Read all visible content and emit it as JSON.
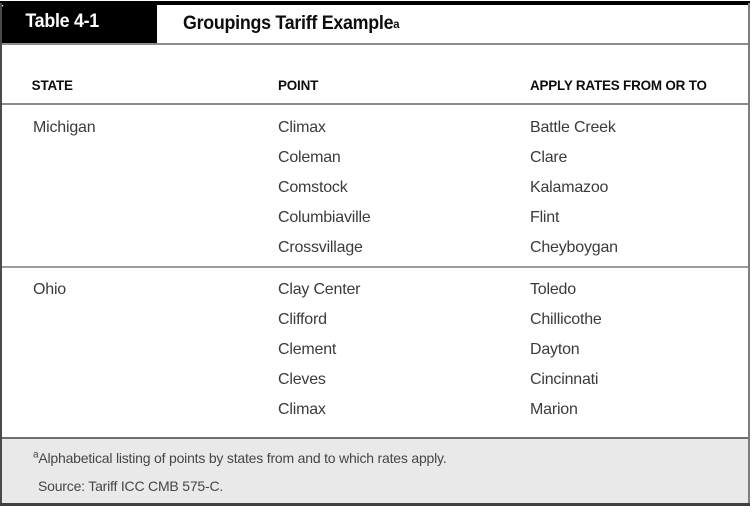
{
  "header": {
    "tab_label": "Table 4-1",
    "title": "Groupings Tariff Example",
    "title_superscript": "a"
  },
  "table": {
    "columns": [
      "STATE",
      "POINT",
      "APPLY RATES FROM OR TO"
    ],
    "sections": [
      {
        "state": "Michigan",
        "rows": [
          {
            "point": "Climax",
            "apply": "Battle Creek"
          },
          {
            "point": "Coleman",
            "apply": "Clare"
          },
          {
            "point": "Comstock",
            "apply": "Kalamazoo"
          },
          {
            "point": "Columbiaville",
            "apply": "Flint"
          },
          {
            "point": "Crossvillage",
            "apply": "Cheyboygan"
          }
        ]
      },
      {
        "state": "Ohio",
        "rows": [
          {
            "point": "Clay Center",
            "apply": "Toledo"
          },
          {
            "point": "Clifford",
            "apply": "Chillicothe"
          },
          {
            "point": "Clement",
            "apply": "Dayton"
          },
          {
            "point": "Cleves",
            "apply": "Cincinnati"
          },
          {
            "point": "Climax",
            "apply": "Marion"
          }
        ]
      }
    ]
  },
  "footer": {
    "footnote_marker": "a",
    "footnote_text": "Alphabetical listing of points by states from and to which rates apply.",
    "source_text": "Source: Tariff ICC CMB 575-C."
  },
  "colors": {
    "tab_background": "#000000",
    "body_text": "#3b3b3b",
    "rule_gray": "#8c8c8c",
    "footer_background": "#e9e9e9"
  }
}
